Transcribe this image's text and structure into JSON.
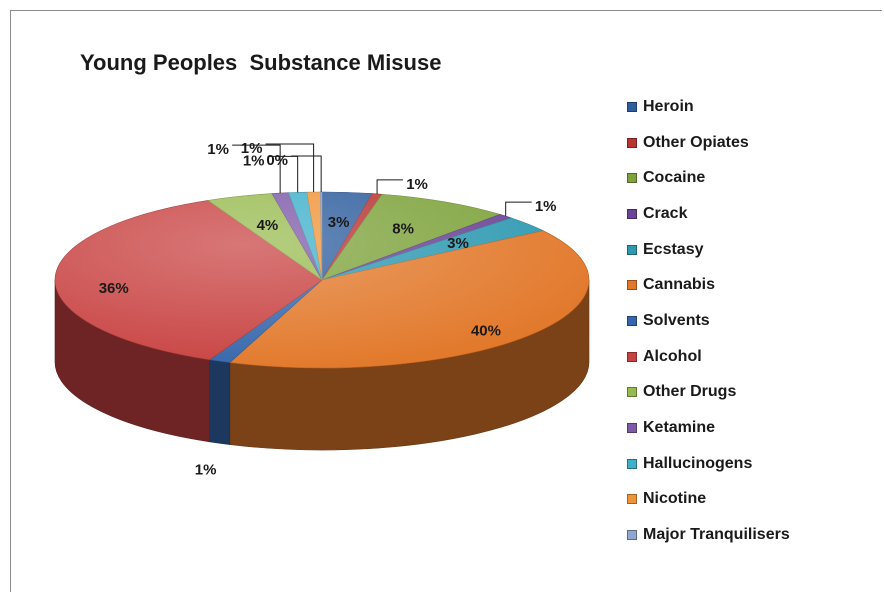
{
  "chart_data": {
    "type": "pie",
    "title": "Young Peoples  Substance Misuse",
    "slices": [
      {
        "name": "Heroin",
        "value": 3,
        "label": "3%",
        "color": "#2f5e9e"
      },
      {
        "name": "Other Opiates",
        "value": 0.6,
        "label": "1%",
        "color": "#b83433"
      },
      {
        "name": "Cocaine",
        "value": 8,
        "label": "8%",
        "color": "#7ea33c"
      },
      {
        "name": "Crack",
        "value": 0.9,
        "label": "1%",
        "color": "#6a4496"
      },
      {
        "name": "Ecstasy",
        "value": 3,
        "label": "3%",
        "color": "#2e99b1"
      },
      {
        "name": "Cannabis",
        "value": 40,
        "label": "40%",
        "color": "#e2782a"
      },
      {
        "name": "Solvents",
        "value": 1.3,
        "label": "1%",
        "color": "#3566ab"
      },
      {
        "name": "Alcohol",
        "value": 36,
        "label": "36%",
        "color": "#c84241"
      },
      {
        "name": "Other Drugs",
        "value": 4,
        "label": "4%",
        "color": "#98bb50"
      },
      {
        "name": "Ketamine",
        "value": 1,
        "label": "1%",
        "color": "#7d5aa8"
      },
      {
        "name": "Hallucinogens",
        "value": 1.1,
        "label": "1%",
        "color": "#3fb0cb"
      },
      {
        "name": "Nicotine",
        "value": 0.8,
        "label": "1%",
        "color": "#ef9539"
      },
      {
        "name": "Major Tranquilisers",
        "value": 0.1,
        "label": "0%",
        "color": "#90a7cf"
      }
    ],
    "legend_position": "right"
  }
}
